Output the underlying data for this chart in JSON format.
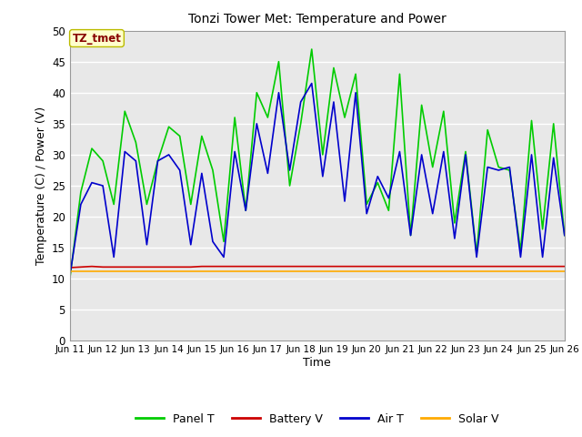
{
  "title": "Tonzi Tower Met: Temperature and Power",
  "xlabel": "Time",
  "ylabel": "Temperature (C) / Power (V)",
  "ylim": [
    0,
    50
  ],
  "yticks": [
    0,
    5,
    10,
    15,
    20,
    25,
    30,
    35,
    40,
    45,
    50
  ],
  "x_labels": [
    "Jun 11",
    "Jun 12",
    "Jun 13",
    "Jun 14",
    "Jun 15",
    "Jun 16",
    "Jun 17",
    "Jun 18",
    "Jun 19",
    "Jun 20",
    "Jun 21",
    "Jun 22",
    "Jun 23",
    "Jun 24",
    "Jun 25",
    "Jun 26"
  ],
  "legend_entries": [
    "Panel T",
    "Battery V",
    "Air T",
    "Solar V"
  ],
  "legend_colors": [
    "#00cc00",
    "#cc0000",
    "#0000cc",
    "#ffaa00"
  ],
  "annotation_text": "TZ_tmet",
  "annotation_color": "#880000",
  "annotation_bg": "#ffffcc",
  "annotation_edge": "#bbbb00",
  "bg_color": "#e8e8e8",
  "panel_t": [
    10.0,
    24.0,
    31.0,
    29.0,
    22.0,
    37.0,
    32.0,
    22.0,
    29.0,
    34.5,
    33.0,
    22.0,
    33.0,
    27.5,
    16.0,
    36.0,
    21.0,
    40.0,
    36.0,
    45.0,
    25.0,
    35.0,
    47.0,
    30.0,
    44.0,
    36.0,
    43.0,
    22.0,
    25.5,
    21.0,
    43.0,
    17.0,
    38.0,
    28.0,
    37.0,
    19.0,
    30.5,
    14.0,
    34.0,
    28.0,
    27.5,
    14.5,
    35.5,
    18.0,
    35.0,
    17.0
  ],
  "air_t": [
    10.5,
    22.0,
    25.5,
    25.0,
    13.5,
    30.5,
    29.0,
    15.5,
    29.0,
    30.0,
    27.5,
    15.5,
    27.0,
    16.0,
    13.5,
    30.5,
    21.0,
    35.0,
    27.0,
    40.0,
    27.5,
    38.5,
    41.5,
    26.5,
    38.5,
    22.5,
    40.0,
    20.5,
    26.5,
    23.0,
    30.5,
    17.0,
    30.0,
    20.5,
    30.5,
    16.5,
    30.0,
    13.5,
    28.0,
    27.5,
    28.0,
    13.5,
    30.0,
    13.5,
    29.5,
    17.0
  ],
  "battery_v": [
    11.8,
    11.9,
    12.0,
    11.9,
    11.9,
    11.9,
    11.9,
    11.9,
    11.9,
    11.9,
    11.9,
    11.9,
    12.0,
    12.0,
    12.0,
    12.0,
    12.0,
    12.0,
    12.0,
    12.0,
    12.0,
    12.0,
    12.0,
    12.0,
    12.0,
    12.0,
    12.0,
    12.0,
    12.0,
    12.0,
    12.0,
    12.0,
    12.0,
    12.0,
    12.0,
    12.0,
    12.0,
    12.0,
    12.0,
    12.0,
    12.0,
    12.0,
    12.0,
    12.0,
    12.0,
    12.0
  ],
  "solar_v": [
    11.2,
    11.2,
    11.2,
    11.2,
    11.2,
    11.2,
    11.2,
    11.2,
    11.2,
    11.2,
    11.2,
    11.2,
    11.2,
    11.2,
    11.2,
    11.2,
    11.2,
    11.2,
    11.2,
    11.2,
    11.2,
    11.2,
    11.2,
    11.2,
    11.2,
    11.2,
    11.2,
    11.2,
    11.2,
    11.2,
    11.2,
    11.2,
    11.2,
    11.2,
    11.2,
    11.2,
    11.2,
    11.2,
    11.2,
    11.2,
    11.2,
    11.2,
    11.2,
    11.2,
    11.2,
    11.2
  ]
}
